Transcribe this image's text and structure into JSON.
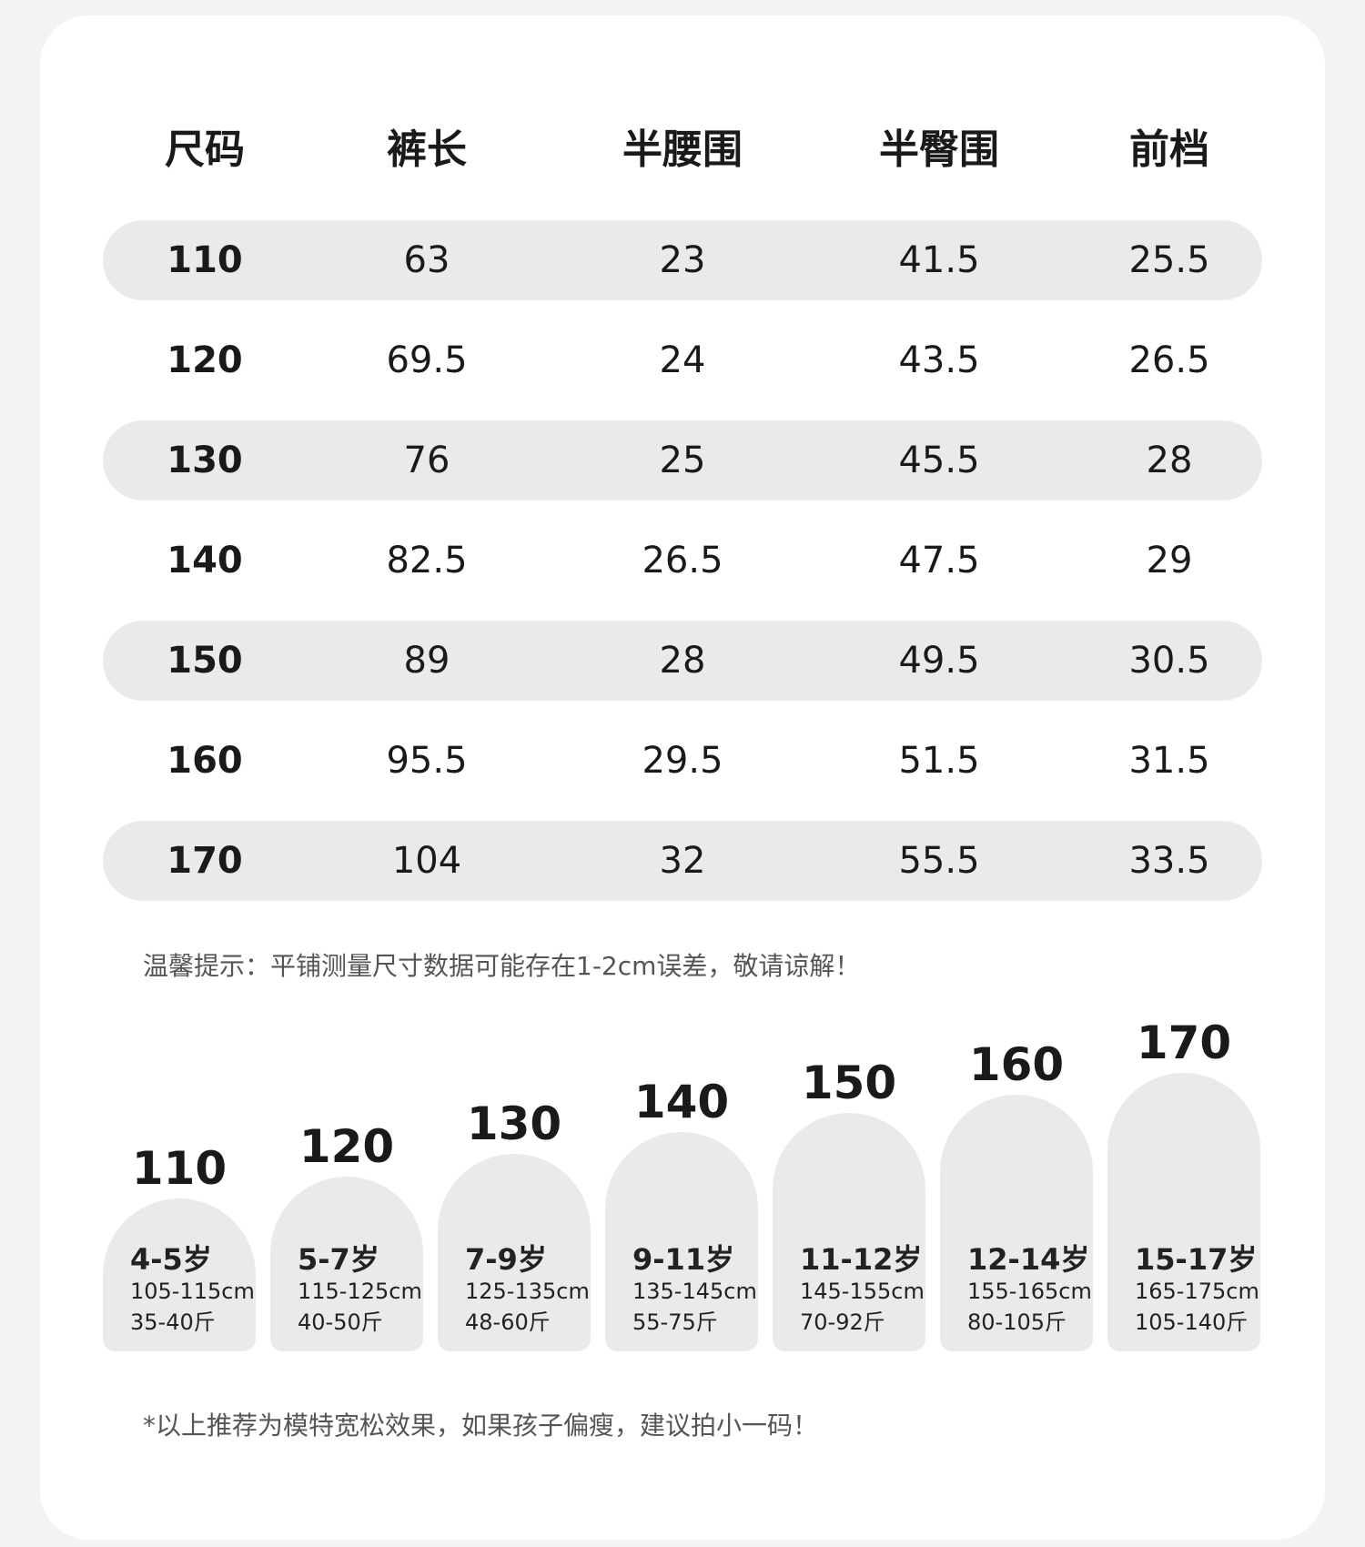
{
  "table": {
    "headers": [
      "尺码",
      "裤长",
      "半腰围",
      "半臀围",
      "前档"
    ],
    "rows": [
      [
        "110",
        "63",
        "23",
        "41.5",
        "25.5"
      ],
      [
        "120",
        "69.5",
        "24",
        "43.5",
        "26.5"
      ],
      [
        "130",
        "76",
        "25",
        "45.5",
        "28"
      ],
      [
        "140",
        "82.5",
        "26.5",
        "47.5",
        "29"
      ],
      [
        "150",
        "89",
        "28",
        "49.5",
        "30.5"
      ],
      [
        "160",
        "95.5",
        "29.5",
        "51.5",
        "31.5"
      ],
      [
        "170",
        "104",
        "32",
        "55.5",
        "33.5"
      ]
    ]
  },
  "tip": "温馨提示：平铺测量尺寸数据可能存在1-2cm误差，敬请谅解！",
  "recommend": [
    {
      "size": "110",
      "age": "4-5岁",
      "height": "105-115cm",
      "weight": "35-40斤"
    },
    {
      "size": "120",
      "age": "5-7岁",
      "height": "115-125cm",
      "weight": "40-50斤"
    },
    {
      "size": "130",
      "age": "7-9岁",
      "height": "125-135cm",
      "weight": "48-60斤"
    },
    {
      "size": "140",
      "age": "9-11岁",
      "height": "135-145cm",
      "weight": "55-75斤"
    },
    {
      "size": "150",
      "age": "11-12岁",
      "height": "145-155cm",
      "weight": "70-92斤"
    },
    {
      "size": "160",
      "age": "12-14岁",
      "height": "155-165cm",
      "weight": "80-105斤"
    },
    {
      "size": "170",
      "age": "15-17岁",
      "height": "165-175cm",
      "weight": "105-140斤"
    }
  ],
  "footnote": "*以上推荐为模特宽松效果，如果孩子偏瘦，建议拍小一码！"
}
